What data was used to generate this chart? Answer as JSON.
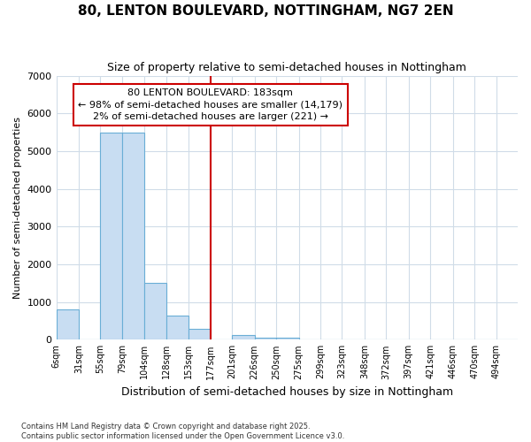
{
  "title": "80, LENTON BOULEVARD, NOTTINGHAM, NG7 2EN",
  "subtitle": "Size of property relative to semi-detached houses in Nottingham",
  "xlabel": "Distribution of semi-detached houses by size in Nottingham",
  "ylabel": "Number of semi-detached properties",
  "footer1": "Contains HM Land Registry data © Crown copyright and database right 2025.",
  "footer2": "Contains public sector information licensed under the Open Government Licence v3.0.",
  "annotation_title": "80 LENTON BOULEVARD: 183sqm",
  "annotation_line1": "← 98% of semi-detached houses are smaller (14,179)",
  "annotation_line2": "2% of semi-detached houses are larger (221) →",
  "vline_x_index": 7,
  "bar_color": "#c8ddf2",
  "bar_edge_color": "#6aaed6",
  "vline_color": "#cc0000",
  "annotation_box_color": "#cc0000",
  "background_color": "#ffffff",
  "grid_color": "#d0dce8",
  "categories": [
    "6sqm",
    "31sqm",
    "55sqm",
    "79sqm",
    "104sqm",
    "128sqm",
    "153sqm",
    "177sqm",
    "201sqm",
    "226sqm",
    "250sqm",
    "275sqm",
    "299sqm",
    "323sqm",
    "348sqm",
    "372sqm",
    "397sqm",
    "421sqm",
    "446sqm",
    "470sqm",
    "494sqm"
  ],
  "bin_edges": [
    6,
    31,
    55,
    79,
    104,
    128,
    153,
    177,
    201,
    226,
    250,
    275,
    299,
    323,
    348,
    372,
    397,
    421,
    446,
    470,
    494
  ],
  "values": [
    800,
    0,
    5500,
    5500,
    1500,
    650,
    280,
    0,
    130,
    50,
    50,
    0,
    0,
    0,
    0,
    0,
    0,
    0,
    0,
    0,
    0
  ],
  "ylim": [
    0,
    7000
  ],
  "yticks": [
    0,
    1000,
    2000,
    3000,
    4000,
    5000,
    6000,
    7000
  ]
}
